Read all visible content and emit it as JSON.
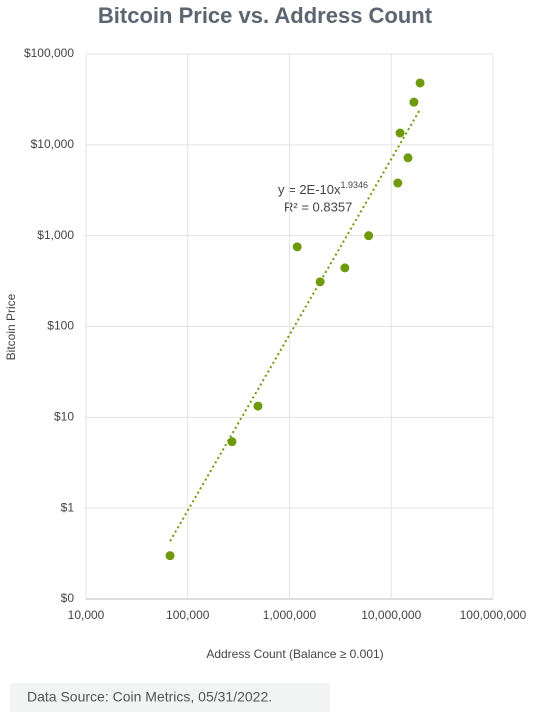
{
  "chart_data": {
    "type": "scatter",
    "title": "Bitcoin Price vs. Address Count",
    "x_label": "Address Count (Balance ≥ 0.001)",
    "y_label": "Bitcoin Price",
    "x_scale": "log",
    "y_scale": "log",
    "grid": true,
    "color": "#6e9a0c",
    "x": [
      67000,
      272000,
      490000,
      1190000,
      2000000,
      3500000,
      6000000,
      11600000,
      12200000,
      14600000,
      16700000,
      19200000
    ],
    "values": [
      0.3,
      5.4,
      13.3,
      753,
      310,
      442,
      1000,
      3800,
      13500,
      7200,
      29500,
      48000
    ],
    "xlim": [
      10000,
      100000000
    ],
    "xticks": [
      {
        "value": 10000,
        "label": "10,000"
      },
      {
        "value": 100000,
        "label": "100,000"
      },
      {
        "value": 1000000,
        "label": "1,000,000"
      },
      {
        "value": 10000000,
        "label": "10,000,000"
      },
      {
        "value": 100000000,
        "label": "100,000,000"
      }
    ],
    "ylim": [
      0.1,
      100000
    ],
    "yticks": [
      {
        "value": 0.1,
        "label": "$0"
      },
      {
        "value": 1,
        "label": "$1"
      },
      {
        "value": 10,
        "label": "$10"
      },
      {
        "value": 100,
        "label": "$100"
      },
      {
        "value": 1000,
        "label": "$1,000"
      },
      {
        "value": 10000,
        "label": "$10,000"
      },
      {
        "value": 100000,
        "label": "$100,000"
      }
    ],
    "trendline": {
      "type": "power",
      "coefficient": 2e-10,
      "exponent": 1.9346,
      "equation": "y = 2E-10x",
      "r_squared_label": "R² = 0.8357",
      "r_squared": 0.8357,
      "color": "#6e9a0c"
    },
    "source": "Data Source: Coin Metrics, 05/31/2022."
  }
}
